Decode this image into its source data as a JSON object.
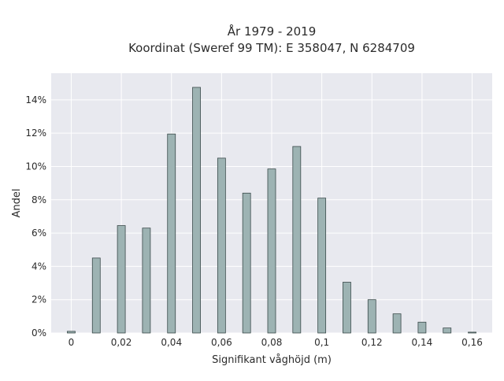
{
  "chart_data": {
    "type": "bar",
    "title": "År 1979 - 2019",
    "subtitle": "Koordinat (Sweref 99 TM): E 358047, N 6284709",
    "xlabel": "Signifikant våghöjd (m)",
    "ylabel": "Andel",
    "x": [
      0,
      0.01,
      0.02,
      0.03,
      0.04,
      0.05,
      0.06,
      0.07,
      0.08,
      0.09,
      0.1,
      0.11,
      0.12,
      0.13,
      0.14,
      0.15,
      0.16
    ],
    "values": [
      0.1,
      4.5,
      6.45,
      6.3,
      11.95,
      14.75,
      10.5,
      8.4,
      9.85,
      11.2,
      8.1,
      3.05,
      2.0,
      1.15,
      0.65,
      0.3,
      0.05
    ],
    "y_unit": "%",
    "xlim": [
      -0.008,
      0.168
    ],
    "ylim": [
      0,
      15.6
    ],
    "x_ticks": [
      0,
      0.02,
      0.04,
      0.06,
      0.08,
      0.1,
      0.12,
      0.14,
      0.16
    ],
    "x_tick_labels": [
      "0",
      "0,02",
      "0,04",
      "0,06",
      "0,08",
      "0,1",
      "0,12",
      "0,14",
      "0,16"
    ],
    "y_ticks": [
      0,
      2,
      4,
      6,
      8,
      10,
      12,
      14
    ],
    "y_tick_labels": [
      "0%",
      "2%",
      "4%",
      "6%",
      "8%",
      "10%",
      "12%",
      "14%"
    ],
    "grid": true,
    "legend": "none",
    "colors": {
      "bar_fill": "#9db3b3",
      "bar_stroke": "#3a4a4a",
      "plot_background": "#e8e9ef",
      "grid": "#ffffff"
    }
  }
}
